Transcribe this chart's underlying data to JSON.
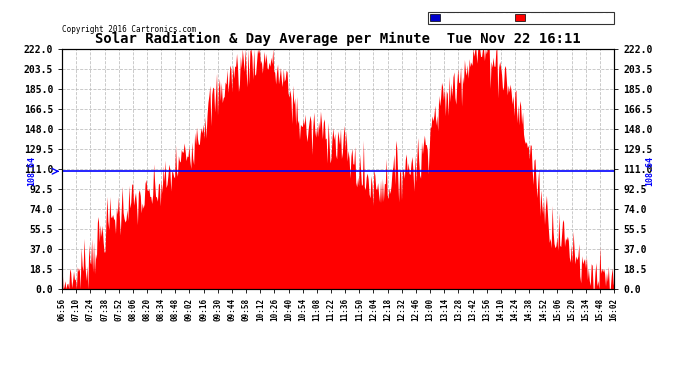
{
  "title": "Solar Radiation & Day Average per Minute  Tue Nov 22 16:11",
  "copyright": "Copyright 2016 Cartronics.com",
  "median_value": 108.64,
  "y_ticks": [
    0.0,
    18.5,
    37.0,
    55.5,
    74.0,
    92.5,
    111.0,
    129.5,
    148.0,
    166.5,
    185.0,
    203.5,
    222.0
  ],
  "ylim": [
    0.0,
    222.0
  ],
  "bar_color": "#FF0000",
  "median_color": "#0000FF",
  "background_color": "#FFFFFF",
  "grid_color": "#BBBBBB",
  "legend_median_bg": "#0000CC",
  "legend_radiation_bg": "#FF0000",
  "x_labels": [
    "06:56",
    "07:10",
    "07:24",
    "07:38",
    "07:52",
    "08:06",
    "08:20",
    "08:34",
    "08:48",
    "09:02",
    "09:16",
    "09:30",
    "09:44",
    "09:58",
    "10:12",
    "10:26",
    "10:40",
    "10:54",
    "11:08",
    "11:22",
    "11:36",
    "11:50",
    "12:04",
    "12:18",
    "12:32",
    "12:46",
    "13:00",
    "13:14",
    "13:28",
    "13:42",
    "13:56",
    "14:10",
    "14:24",
    "14:38",
    "14:52",
    "15:06",
    "15:20",
    "15:34",
    "15:48",
    "16:02"
  ],
  "profile_x": [
    0,
    0.01,
    0.03,
    0.05,
    0.07,
    0.09,
    0.11,
    0.13,
    0.15,
    0.17,
    0.19,
    0.21,
    0.23,
    0.25,
    0.27,
    0.29,
    0.31,
    0.33,
    0.35,
    0.37,
    0.39,
    0.41,
    0.43,
    0.45,
    0.47,
    0.49,
    0.51,
    0.53,
    0.55,
    0.57,
    0.59,
    0.61,
    0.63,
    0.65,
    0.67,
    0.69,
    0.71,
    0.73,
    0.75,
    0.77,
    0.79,
    0.81,
    0.83,
    0.85,
    0.87,
    0.89,
    0.91,
    0.93,
    0.95,
    0.97,
    1.0
  ],
  "profile_y": [
    0,
    5,
    15,
    30,
    50,
    65,
    75,
    80,
    82,
    90,
    100,
    115,
    130,
    150,
    170,
    185,
    200,
    210,
    215,
    212,
    200,
    185,
    155,
    145,
    148,
    140,
    130,
    115,
    100,
    95,
    100,
    108,
    115,
    120,
    155,
    175,
    185,
    210,
    218,
    222,
    210,
    185,
    160,
    120,
    80,
    55,
    45,
    35,
    20,
    10,
    3
  ],
  "noise_std": 12,
  "seed": 7
}
